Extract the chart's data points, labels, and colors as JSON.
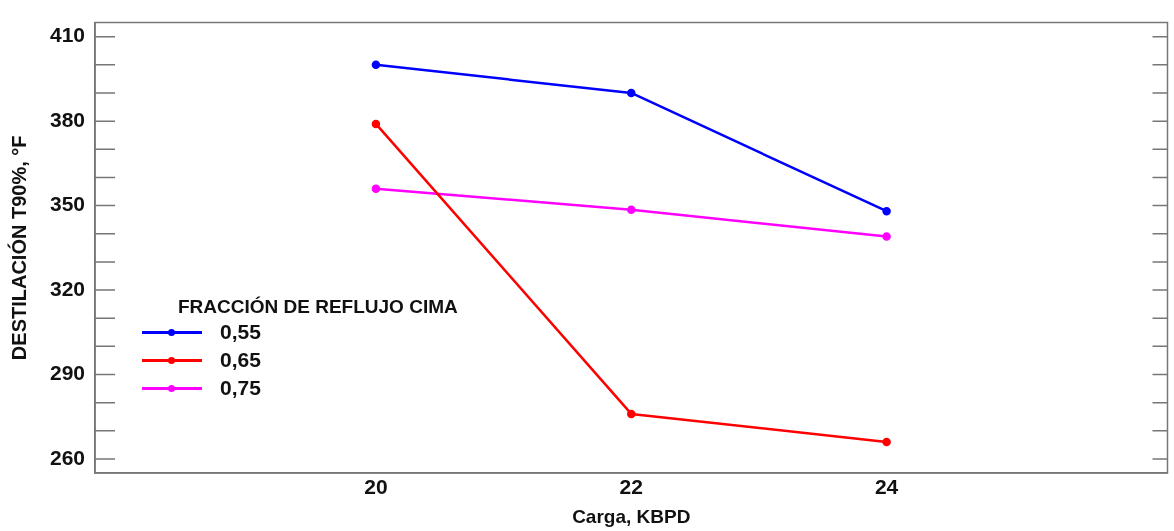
{
  "chart_data": {
    "type": "line",
    "xlabel": "Carga, KBPD",
    "ylabel": "DESTILACIÓN T90%, °F",
    "legend_title": "FRACCIÓN DE REFLUJO CIMA",
    "x": [
      20,
      22,
      24
    ],
    "series": [
      {
        "name": "0,55",
        "color": "#0000ff",
        "values": [
          400,
          390,
          348
        ]
      },
      {
        "name": "0,65",
        "color": "#ff0000",
        "values": [
          379,
          276,
          266
        ]
      },
      {
        "name": "0,75",
        "color": "#ff00ff",
        "values": [
          356,
          348.5,
          339
        ]
      }
    ],
    "xlim": [
      17.8,
      26.2
    ],
    "xticks": [
      20,
      22,
      24
    ],
    "ylim": [
      255,
      415
    ],
    "yticks": [
      {
        "value": 260,
        "label": "260"
      },
      {
        "value": 270,
        "label": null
      },
      {
        "value": 280,
        "label": null
      },
      {
        "value": 290,
        "label": "290"
      },
      {
        "value": 300,
        "label": null
      },
      {
        "value": 310,
        "label": null
      },
      {
        "value": 320,
        "label": "320"
      },
      {
        "value": 330,
        "label": null
      },
      {
        "value": 340,
        "label": null
      },
      {
        "value": 350,
        "label": "350"
      },
      {
        "value": 360,
        "label": null
      },
      {
        "value": 370,
        "label": null
      },
      {
        "value": 380,
        "label": "380"
      },
      {
        "value": 390,
        "label": null
      },
      {
        "value": 400,
        "label": null
      },
      {
        "value": 410,
        "label": "410"
      }
    ],
    "grid": false,
    "legend": "bottom left",
    "marker": "circle",
    "line_style": "solid"
  }
}
